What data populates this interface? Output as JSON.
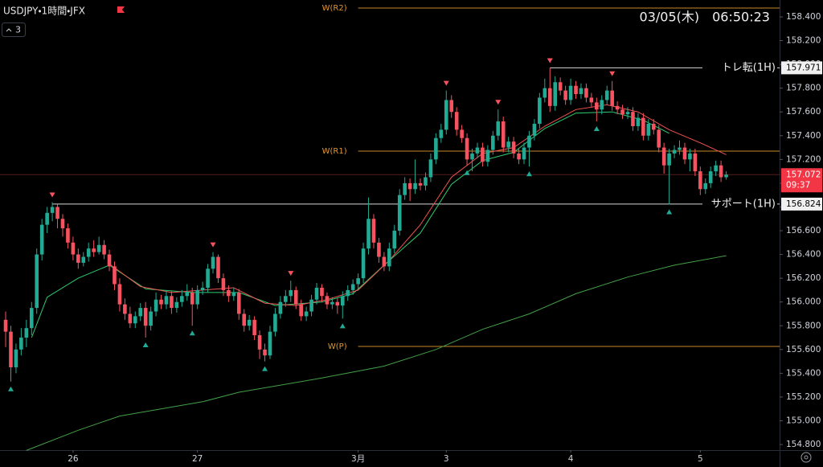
{
  "chart_data": {
    "type": "candlestick",
    "symbol_title": "USDJPY・1時間・JFX",
    "indicator_count": 3,
    "clock": "03/05(木)　06:50:23",
    "countdown": "09:37",
    "up_color": "#22ab94",
    "down_color": "#f7525f",
    "xlim": [
      -1.09,
      149.3
    ],
    "ylim": [
      154.753,
      158.542
    ],
    "xticks": [
      {
        "value": 13,
        "label": "26"
      },
      {
        "value": 37,
        "label": "27"
      },
      {
        "value": 68,
        "label": "3月"
      },
      {
        "value": 85,
        "label": "3"
      },
      {
        "value": 109,
        "label": "4"
      },
      {
        "value": 134,
        "label": "5"
      }
    ],
    "yticks": [
      {
        "value": 158.4,
        "label": "158.400"
      },
      {
        "value": 158.2,
        "label": "158.200"
      },
      {
        "value": 158.0,
        "label": "158.000"
      },
      {
        "value": 157.8,
        "label": "157.800"
      },
      {
        "value": 157.6,
        "label": "157.600"
      },
      {
        "value": 157.4,
        "label": "157.400"
      },
      {
        "value": 157.2,
        "label": "157.200"
      },
      {
        "value": 157.0,
        "label": "157.000"
      },
      {
        "value": 156.8,
        "label": "156.800"
      },
      {
        "value": 156.6,
        "label": "156.600"
      },
      {
        "value": 156.4,
        "label": "156.400"
      },
      {
        "value": 156.2,
        "label": "156.200"
      },
      {
        "value": 156.0,
        "label": "156.000"
      },
      {
        "value": 155.8,
        "label": "155.800"
      },
      {
        "value": 155.6,
        "label": "155.600"
      },
      {
        "value": 155.4,
        "label": "155.400"
      },
      {
        "value": 155.2,
        "label": "155.200"
      },
      {
        "value": 155.0,
        "label": "155.000"
      },
      {
        "value": 154.8,
        "label": "154.800"
      }
    ],
    "candles": [
      [
        155.85,
        155.92,
        155.62,
        155.75
      ],
      [
        155.75,
        155.8,
        155.33,
        155.45
      ],
      [
        155.45,
        155.65,
        155.4,
        155.6
      ],
      [
        155.6,
        155.78,
        155.55,
        155.7
      ],
      [
        155.7,
        155.85,
        155.62,
        155.78
      ],
      [
        155.78,
        156.0,
        155.72,
        155.95
      ],
      [
        155.95,
        156.45,
        155.9,
        156.4
      ],
      [
        156.4,
        156.7,
        156.35,
        156.65
      ],
      [
        156.65,
        156.8,
        156.58,
        156.75
      ],
      [
        156.75,
        156.84,
        156.68,
        156.8
      ],
      [
        156.8,
        156.82,
        156.62,
        156.7
      ],
      [
        156.7,
        156.74,
        156.55,
        156.62
      ],
      [
        156.62,
        156.66,
        156.45,
        156.5
      ],
      [
        156.5,
        156.55,
        156.35,
        156.4
      ],
      [
        156.4,
        156.45,
        156.28,
        156.33
      ],
      [
        156.33,
        156.42,
        156.3,
        156.38
      ],
      [
        156.38,
        156.5,
        156.34,
        156.45
      ],
      [
        156.45,
        156.52,
        156.38,
        156.42
      ],
      [
        156.42,
        156.55,
        156.4,
        156.48
      ],
      [
        156.48,
        156.52,
        156.36,
        156.4
      ],
      [
        156.4,
        156.44,
        156.26,
        156.3
      ],
      [
        156.3,
        156.34,
        156.1,
        156.15
      ],
      [
        156.15,
        156.2,
        155.92,
        155.98
      ],
      [
        155.98,
        156.03,
        155.85,
        155.9
      ],
      [
        155.9,
        155.96,
        155.78,
        155.82
      ],
      [
        155.82,
        155.92,
        155.78,
        155.88
      ],
      [
        155.88,
        155.99,
        155.84,
        155.95
      ],
      [
        155.95,
        156.0,
        155.7,
        155.8
      ],
      [
        155.8,
        155.96,
        155.76,
        155.92
      ],
      [
        155.92,
        156.08,
        155.88,
        156.02
      ],
      [
        156.02,
        156.06,
        155.94,
        155.98
      ],
      [
        155.98,
        156.1,
        155.94,
        156.05
      ],
      [
        156.05,
        156.09,
        155.9,
        155.95
      ],
      [
        155.95,
        156.04,
        155.91,
        156.0
      ],
      [
        156.0,
        156.1,
        155.96,
        156.05
      ],
      [
        156.05,
        156.15,
        156.01,
        156.08
      ],
      [
        156.08,
        156.12,
        155.8,
        155.98
      ],
      [
        155.98,
        156.14,
        155.94,
        156.1
      ],
      [
        156.1,
        156.17,
        156.06,
        156.12
      ],
      [
        156.12,
        156.32,
        156.08,
        156.28
      ],
      [
        156.28,
        156.42,
        156.24,
        156.38
      ],
      [
        156.38,
        156.4,
        156.16,
        156.2
      ],
      [
        156.2,
        156.24,
        156.05,
        156.1
      ],
      [
        156.1,
        156.14,
        156.0,
        156.05
      ],
      [
        156.05,
        156.12,
        156.01,
        156.08
      ],
      [
        156.08,
        156.11,
        155.85,
        155.9
      ],
      [
        155.9,
        155.94,
        155.75,
        155.8
      ],
      [
        155.8,
        155.89,
        155.76,
        155.85
      ],
      [
        155.85,
        155.88,
        155.68,
        155.72
      ],
      [
        155.72,
        155.76,
        155.52,
        155.6
      ],
      [
        155.6,
        155.65,
        155.5,
        155.55
      ],
      [
        155.55,
        155.8,
        155.52,
        155.75
      ],
      [
        155.75,
        155.95,
        155.71,
        155.9
      ],
      [
        155.9,
        156.05,
        155.86,
        156.0
      ],
      [
        156.0,
        156.1,
        155.96,
        156.05
      ],
      [
        156.05,
        156.18,
        156.0,
        156.1
      ],
      [
        156.1,
        156.13,
        155.94,
        155.98
      ],
      [
        155.98,
        156.02,
        155.84,
        155.88
      ],
      [
        155.88,
        155.96,
        155.84,
        155.92
      ],
      [
        155.92,
        156.06,
        155.88,
        156.02
      ],
      [
        156.02,
        156.16,
        155.98,
        156.12
      ],
      [
        156.12,
        156.15,
        156.0,
        156.05
      ],
      [
        156.05,
        156.08,
        155.94,
        155.98
      ],
      [
        155.98,
        156.04,
        155.94,
        156.0
      ],
      [
        156.0,
        156.03,
        155.9,
        155.97
      ],
      [
        155.97,
        156.09,
        155.86,
        156.05
      ],
      [
        156.05,
        156.14,
        156.01,
        156.1
      ],
      [
        156.1,
        156.19,
        156.06,
        156.15
      ],
      [
        156.15,
        156.24,
        156.1,
        156.2
      ],
      [
        156.2,
        156.5,
        156.16,
        156.45
      ],
      [
        156.45,
        156.88,
        156.4,
        156.7
      ],
      [
        156.7,
        156.74,
        156.45,
        156.5
      ],
      [
        156.5,
        156.54,
        156.33,
        156.38
      ],
      [
        156.38,
        156.42,
        156.26,
        156.3
      ],
      [
        156.3,
        156.5,
        156.26,
        156.45
      ],
      [
        156.45,
        156.65,
        156.41,
        156.6
      ],
      [
        156.6,
        156.95,
        156.56,
        156.9
      ],
      [
        156.9,
        157.05,
        156.86,
        157.0
      ],
      [
        157.0,
        157.04,
        156.85,
        156.95
      ],
      [
        156.95,
        157.2,
        156.91,
        157.0
      ],
      [
        157.0,
        157.04,
        156.94,
        156.98
      ],
      [
        156.98,
        157.09,
        156.94,
        157.05
      ],
      [
        157.05,
        157.25,
        157.01,
        157.2
      ],
      [
        157.2,
        157.42,
        157.16,
        157.38
      ],
      [
        157.38,
        157.5,
        157.34,
        157.45
      ],
      [
        157.45,
        157.78,
        157.41,
        157.7
      ],
      [
        157.7,
        157.74,
        157.55,
        157.6
      ],
      [
        157.6,
        157.64,
        157.4,
        157.45
      ],
      [
        157.45,
        157.49,
        157.34,
        157.38
      ],
      [
        157.38,
        157.42,
        157.15,
        157.2
      ],
      [
        157.2,
        157.29,
        157.1,
        157.25
      ],
      [
        157.25,
        157.34,
        157.21,
        157.3
      ],
      [
        157.3,
        157.34,
        157.14,
        157.18
      ],
      [
        157.18,
        157.32,
        157.14,
        157.28
      ],
      [
        157.28,
        157.44,
        157.24,
        157.4
      ],
      [
        157.4,
        157.62,
        157.36,
        157.52
      ],
      [
        157.52,
        157.56,
        157.26,
        157.3
      ],
      [
        157.3,
        157.39,
        157.26,
        157.35
      ],
      [
        157.35,
        157.39,
        157.21,
        157.25
      ],
      [
        157.25,
        157.29,
        157.16,
        157.2
      ],
      [
        157.2,
        157.34,
        157.16,
        157.3
      ],
      [
        157.3,
        157.44,
        157.14,
        157.4
      ],
      [
        157.4,
        157.54,
        157.36,
        157.5
      ],
      [
        157.5,
        157.76,
        157.46,
        157.72
      ],
      [
        157.72,
        157.88,
        157.68,
        157.8
      ],
      [
        157.8,
        157.97,
        157.6,
        157.65
      ],
      [
        157.65,
        157.9,
        157.61,
        157.85
      ],
      [
        157.85,
        157.89,
        157.74,
        157.78
      ],
      [
        157.78,
        157.82,
        157.66,
        157.7
      ],
      [
        157.7,
        157.88,
        157.66,
        157.82
      ],
      [
        157.82,
        157.86,
        157.71,
        157.75
      ],
      [
        157.75,
        157.84,
        157.71,
        157.8
      ],
      [
        157.8,
        157.84,
        157.68,
        157.72
      ],
      [
        157.72,
        157.76,
        157.64,
        157.68
      ],
      [
        157.68,
        157.72,
        157.52,
        157.62
      ],
      [
        157.62,
        157.74,
        157.58,
        157.7
      ],
      [
        157.7,
        157.82,
        157.66,
        157.78
      ],
      [
        157.78,
        157.86,
        157.61,
        157.65
      ],
      [
        157.65,
        157.69,
        157.58,
        157.62
      ],
      [
        157.62,
        157.66,
        157.54,
        157.58
      ],
      [
        157.58,
        157.64,
        157.54,
        157.6
      ],
      [
        157.6,
        157.64,
        157.44,
        157.48
      ],
      [
        157.48,
        157.59,
        157.44,
        157.55
      ],
      [
        157.55,
        157.59,
        157.36,
        157.4
      ],
      [
        157.4,
        157.54,
        157.36,
        157.5
      ],
      [
        157.5,
        157.54,
        157.41,
        157.45
      ],
      [
        157.45,
        157.49,
        157.26,
        157.3
      ],
      [
        157.3,
        157.34,
        157.08,
        157.15
      ],
      [
        157.15,
        157.29,
        156.82,
        157.25
      ],
      [
        157.25,
        157.32,
        157.21,
        157.28
      ],
      [
        157.28,
        157.36,
        157.24,
        157.3
      ],
      [
        157.3,
        157.34,
        157.16,
        157.2
      ],
      [
        157.2,
        157.29,
        157.1,
        157.25
      ],
      [
        157.25,
        157.29,
        157.06,
        157.1
      ],
      [
        157.1,
        157.14,
        156.9,
        156.95
      ],
      [
        156.95,
        157.04,
        156.91,
        157.0
      ],
      [
        157.0,
        157.14,
        156.96,
        157.1
      ],
      [
        157.1,
        157.19,
        157.06,
        157.15
      ],
      [
        157.15,
        157.19,
        157.01,
        157.05
      ],
      [
        157.05,
        157.1,
        157.03,
        157.072
      ]
    ],
    "moving_averages": [
      {
        "color": "#43a047",
        "x": [
          4,
          14,
          22,
          38,
          45,
          61,
          73,
          83,
          92,
          101,
          110,
          120,
          129,
          139
        ],
        "values": [
          154.75,
          154.92,
          155.04,
          155.16,
          155.24,
          155.36,
          155.46,
          155.6,
          155.77,
          155.9,
          156.07,
          156.21,
          156.31,
          156.39
        ]
      },
      {
        "color": "#2ecc71",
        "x": [
          5,
          8,
          14,
          20,
          27,
          36,
          45,
          52,
          61,
          67,
          73,
          80,
          86,
          92,
          98,
          104,
          110,
          117,
          123,
          128
        ],
        "values": [
          155.7,
          156.04,
          156.2,
          156.31,
          156.11,
          156.08,
          156.08,
          155.97,
          156.0,
          156.07,
          156.31,
          156.58,
          156.99,
          157.19,
          157.26,
          157.46,
          157.59,
          157.6,
          157.53,
          157.42
        ]
      },
      {
        "color": "#ef5350",
        "x": [
          20,
          26,
          32,
          38,
          44,
          50,
          56,
          62,
          68,
          74,
          80,
          86,
          92,
          98,
          104,
          110,
          116,
          122,
          128,
          134,
          139
        ],
        "values": [
          156.32,
          156.13,
          156.08,
          156.1,
          156.12,
          155.99,
          155.97,
          156.02,
          156.1,
          156.35,
          156.65,
          157.05,
          157.25,
          157.3,
          157.48,
          157.62,
          157.66,
          157.6,
          157.45,
          157.34,
          157.24
        ]
      }
    ],
    "pivot_highs": [
      9,
      40,
      55,
      85,
      95,
      105,
      117
    ],
    "pivot_lows": [
      1,
      27,
      36,
      50,
      65,
      89,
      101,
      114,
      128
    ],
    "levels": [
      {
        "label": "W(R2)",
        "value": 158.474,
        "from": 68,
        "color": "#c8882a",
        "label_side": "left"
      },
      {
        "label": "W(R1)",
        "value": 157.27,
        "from": 68,
        "color": "#c8882a",
        "label_side": "left"
      },
      {
        "label": "W(P)",
        "value": 155.626,
        "from": 68,
        "color": "#c8882a",
        "label_side": "left"
      },
      {
        "label": "トレ転(1H)",
        "value": 157.971,
        "from": 105,
        "color": "#d8d8d8",
        "label_side": "right"
      },
      {
        "label": "サポート(1H)",
        "value": 156.824,
        "from": 9,
        "color": "#d8d8d8",
        "label_side": "right"
      }
    ]
  }
}
